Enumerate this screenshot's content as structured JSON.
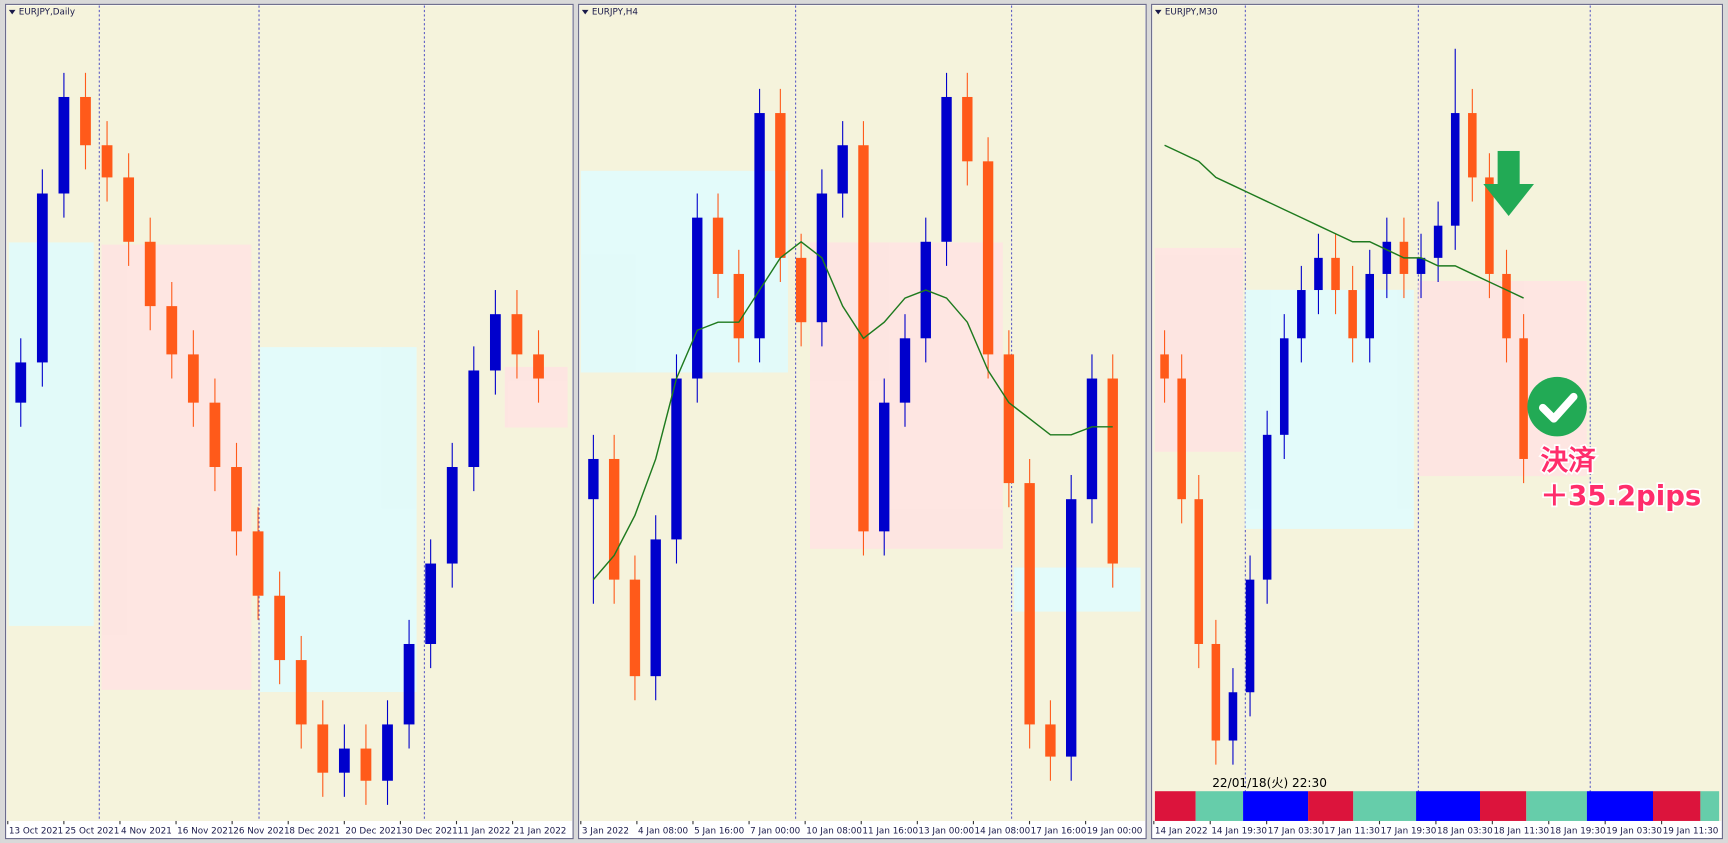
{
  "chart_data": [
    {
      "type": "candlestick",
      "title": "EURJPY,Daily",
      "ylim": [
        0,
        100
      ],
      "x_labels": [
        "13 Oct 2021",
        "25 Oct 2021",
        "4 Nov 2021",
        "16 Nov 2021",
        "26 Nov 2021",
        "8 Dec 2021",
        "20 Dec 2021",
        "30 Dec 2021",
        "11 Jan 2022",
        "21 Jan 2022"
      ],
      "up_color": "#0000cc",
      "down_color": "#ff5a1a",
      "candles": [
        [
          52,
          60,
          49,
          57
        ],
        [
          57,
          81,
          54,
          78
        ],
        [
          78,
          93,
          75,
          90
        ],
        [
          90,
          93,
          81,
          84
        ],
        [
          84,
          87,
          77,
          80
        ],
        [
          80,
          83,
          69,
          72
        ],
        [
          72,
          75,
          61,
          64
        ],
        [
          64,
          67,
          55,
          58
        ],
        [
          58,
          61,
          49,
          52
        ],
        [
          52,
          55,
          41,
          44
        ],
        [
          44,
          47,
          33,
          36
        ],
        [
          36,
          39,
          25,
          28
        ],
        [
          28,
          31,
          17,
          20
        ],
        [
          20,
          23,
          9,
          12
        ],
        [
          12,
          15,
          3,
          6
        ],
        [
          6,
          12,
          3,
          9
        ],
        [
          9,
          12,
          2,
          5
        ],
        [
          5,
          15,
          2,
          12
        ],
        [
          12,
          25,
          9,
          22
        ],
        [
          22,
          35,
          19,
          32
        ],
        [
          32,
          47,
          29,
          44
        ],
        [
          44,
          59,
          41,
          56
        ],
        [
          56,
          66,
          53,
          63
        ],
        [
          63,
          66,
          55,
          58
        ],
        [
          58,
          61,
          52,
          55
        ]
      ]
    },
    {
      "type": "candlestick",
      "title": "EURJPY,H4",
      "ylim": [
        0,
        100
      ],
      "x_labels": [
        "3 Jan 2022",
        "4 Jan 08:00",
        "5 Jan 16:00",
        "7 Jan 00:00",
        "10 Jan 08:00",
        "11 Jan 16:00",
        "13 Jan 00:00",
        "14 Jan 08:00",
        "17 Jan 16:00",
        "19 Jan 00:00"
      ],
      "up_color": "#0000cc",
      "down_color": "#ff5a1a",
      "ma_color": "#1e7a1e",
      "candles": [
        [
          40,
          48,
          27,
          45
        ],
        [
          45,
          48,
          27,
          30
        ],
        [
          30,
          33,
          15,
          18
        ],
        [
          18,
          38,
          15,
          35
        ],
        [
          35,
          58,
          32,
          55
        ],
        [
          55,
          78,
          52,
          75
        ],
        [
          75,
          78,
          65,
          68
        ],
        [
          68,
          71,
          57,
          60
        ],
        [
          60,
          91,
          57,
          88
        ],
        [
          88,
          91,
          67,
          70
        ],
        [
          70,
          73,
          59,
          62
        ],
        [
          62,
          81,
          59,
          78
        ],
        [
          78,
          87,
          75,
          84
        ],
        [
          84,
          87,
          33,
          36
        ],
        [
          36,
          55,
          33,
          52
        ],
        [
          52,
          63,
          49,
          60
        ],
        [
          60,
          75,
          57,
          72
        ],
        [
          72,
          93,
          69,
          90
        ],
        [
          90,
          93,
          79,
          82
        ],
        [
          82,
          85,
          55,
          58
        ],
        [
          58,
          61,
          39,
          42
        ],
        [
          42,
          45,
          9,
          12
        ],
        [
          12,
          15,
          5,
          8
        ],
        [
          8,
          43,
          5,
          40
        ],
        [
          40,
          58,
          37,
          55
        ],
        [
          55,
          58,
          29,
          32
        ]
      ],
      "ma": [
        30,
        33,
        38,
        45,
        55,
        61,
        62,
        62,
        66,
        70,
        72,
        70,
        64,
        60,
        62,
        65,
        66,
        65,
        62,
        56,
        52,
        50,
        48,
        48,
        49,
        49
      ]
    },
    {
      "type": "candlestick",
      "title": "EURJPY,M30",
      "ylim": [
        0,
        100
      ],
      "x_labels": [
        "14 Jan 2022",
        "14 Jan 19:30",
        "17 Jan 03:30",
        "17 Jan 11:30",
        "17 Jan 19:30",
        "18 Jan 03:30",
        "18 Jan 11:30",
        "18 Jan 19:30",
        "19 Jan 03:30",
        "19 Jan 11:30"
      ],
      "up_color": "#0000cc",
      "down_color": "#ff5a1a",
      "ma_color": "#1e7a1e",
      "candles": [
        [
          58,
          61,
          52,
          55
        ],
        [
          55,
          58,
          37,
          40
        ],
        [
          40,
          43,
          19,
          22
        ],
        [
          22,
          25,
          7,
          10
        ],
        [
          10,
          19,
          7,
          16
        ],
        [
          16,
          33,
          13,
          30
        ],
        [
          30,
          51,
          27,
          48
        ],
        [
          48,
          63,
          45,
          60
        ],
        [
          60,
          69,
          57,
          66
        ],
        [
          66,
          73,
          63,
          70
        ],
        [
          70,
          73,
          63,
          66
        ],
        [
          66,
          69,
          57,
          60
        ],
        [
          60,
          71,
          57,
          68
        ],
        [
          68,
          75,
          65,
          72
        ],
        [
          72,
          75,
          65,
          68
        ],
        [
          68,
          73,
          65,
          70
        ],
        [
          70,
          77,
          67,
          74
        ],
        [
          74,
          96,
          71,
          88
        ],
        [
          88,
          91,
          77,
          80
        ],
        [
          80,
          83,
          65,
          68
        ],
        [
          68,
          71,
          57,
          60
        ],
        [
          60,
          63,
          42,
          45
        ]
      ],
      "ma": [
        84,
        83,
        82,
        80,
        79,
        78,
        77,
        76,
        75,
        74,
        73,
        72,
        72,
        71,
        70,
        70,
        69,
        69,
        68,
        67,
        66,
        65
      ],
      "timestamp": "22/01/18(火) 22:30",
      "annotations": [
        "決済",
        "＋35.2pips"
      ]
    }
  ]
}
